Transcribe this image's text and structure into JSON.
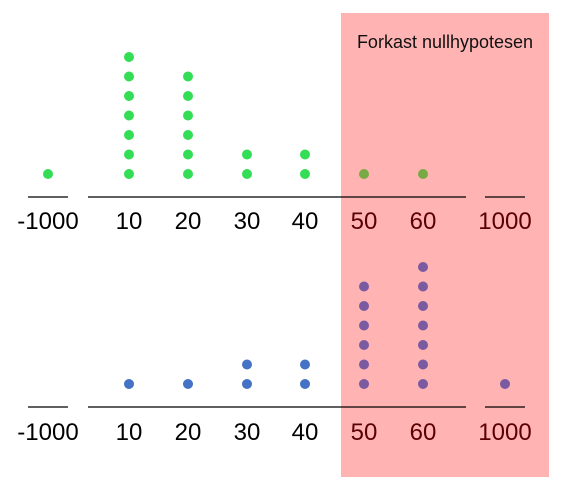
{
  "rejection_region": {
    "label": "Forkast nullhypotesen",
    "from_category": "50",
    "color": "#ffb3b3"
  },
  "axis_labels": [
    "-1000",
    "10",
    "20",
    "30",
    "40",
    "50",
    "60",
    "1000"
  ],
  "plots": [
    {
      "id": "top",
      "color": "#33dd55",
      "overlap_color": "#77aa44",
      "counts": [
        1,
        7,
        6,
        2,
        2,
        1,
        1,
        0
      ]
    },
    {
      "id": "bottom",
      "color": "#4472c4",
      "overlap_color": "#7a5aa0",
      "counts": [
        0,
        1,
        1,
        2,
        2,
        6,
        7,
        1
      ]
    }
  ]
}
